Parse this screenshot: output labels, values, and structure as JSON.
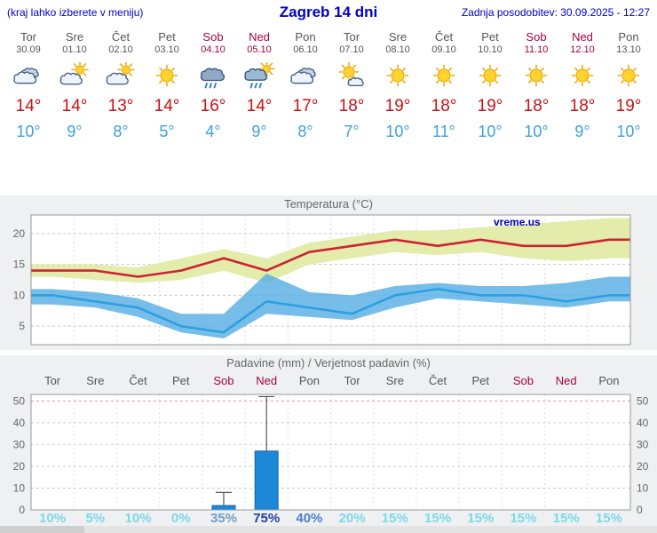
{
  "header": {
    "left_note": "(kraj lahko izberete v meniju)",
    "title": "Zagreb 14 dni",
    "updated": "Zadnja posodobitev: 30.09.2025 - 12:27"
  },
  "colors": {
    "link_blue": "#0000cc",
    "weekday": "#555555",
    "weekend": "#a50041",
    "tmax_text": "#cc1111",
    "tmin_text": "#3da0e0",
    "panel_bg": "#eff0f1",
    "watermark_blue": "#0000bb"
  },
  "days": [
    {
      "name": "Tor",
      "date": "30.09",
      "weekend": false,
      "icon": "cloudy",
      "tmax": "14°",
      "tmin": "10°"
    },
    {
      "name": "Sre",
      "date": "01.10",
      "weekend": false,
      "icon": "partly",
      "tmax": "14°",
      "tmin": "9°"
    },
    {
      "name": "Čet",
      "date": "02.10",
      "weekend": false,
      "icon": "partly",
      "tmax": "13°",
      "tmin": "8°"
    },
    {
      "name": "Pet",
      "date": "03.10",
      "weekend": false,
      "icon": "sunny",
      "tmax": "14°",
      "tmin": "5°"
    },
    {
      "name": "Sob",
      "date": "04.10",
      "weekend": true,
      "icon": "rain",
      "tmax": "16°",
      "tmin": "4°"
    },
    {
      "name": "Ned",
      "date": "05.10",
      "weekend": true,
      "icon": "rainsun",
      "tmax": "14°",
      "tmin": "9°"
    },
    {
      "name": "Pon",
      "date": "06.10",
      "weekend": false,
      "icon": "cloudy",
      "tmax": "17°",
      "tmin": "8°"
    },
    {
      "name": "Tor",
      "date": "07.10",
      "weekend": false,
      "icon": "mostlysunny",
      "tmax": "18°",
      "tmin": "7°"
    },
    {
      "name": "Sre",
      "date": "08.10",
      "weekend": false,
      "icon": "sunny",
      "tmax": "19°",
      "tmin": "10°"
    },
    {
      "name": "Čet",
      "date": "09.10",
      "weekend": false,
      "icon": "sunny",
      "tmax": "18°",
      "tmin": "11°"
    },
    {
      "name": "Pet",
      "date": "10.10",
      "weekend": false,
      "icon": "sunny",
      "tmax": "19°",
      "tmin": "10°"
    },
    {
      "name": "Sob",
      "date": "11.10",
      "weekend": true,
      "icon": "sunny",
      "tmax": "18°",
      "tmin": "10°"
    },
    {
      "name": "Ned",
      "date": "12.10",
      "weekend": true,
      "icon": "sunny",
      "tmax": "18°",
      "tmin": "9°"
    },
    {
      "name": "Pon",
      "date": "13.10",
      "weekend": false,
      "icon": "sunny",
      "tmax": "19°",
      "tmin": "10°"
    }
  ],
  "chart_data": [
    {
      "type": "area",
      "title": "Temperatura (°C)",
      "watermark": "vreme.us",
      "ylim": [
        2,
        23
      ],
      "yticks": [
        5,
        10,
        15,
        20
      ],
      "grid": true,
      "series": [
        {
          "name": "tmax-band",
          "kind": "band",
          "color": "#e3ecab",
          "upper": [
            15,
            15,
            14.5,
            16,
            17.5,
            16,
            18.5,
            19.5,
            20.5,
            20.5,
            21,
            21.5,
            22,
            22.5
          ],
          "lower": [
            13,
            12.5,
            12,
            12.5,
            14,
            12,
            15,
            16,
            17,
            16.5,
            17,
            16,
            15.5,
            16
          ]
        },
        {
          "name": "tmin-band",
          "kind": "band",
          "color": "#54aee3",
          "opacity": 0.8,
          "upper": [
            11,
            10.5,
            9.5,
            7,
            7,
            13.5,
            10.5,
            10,
            11.5,
            12,
            11.5,
            11.5,
            12,
            13
          ],
          "lower": [
            8.5,
            8,
            6.5,
            4,
            3,
            7,
            6.5,
            6,
            8,
            9.5,
            9,
            8.5,
            8,
            9
          ]
        },
        {
          "name": "tmax",
          "kind": "line",
          "color": "#cc2233",
          "values": [
            14,
            14,
            13,
            14,
            16,
            14,
            17,
            18,
            19,
            18,
            19,
            18,
            18,
            19
          ]
        },
        {
          "name": "tmin",
          "kind": "line",
          "color": "#2d9fe0",
          "values": [
            10,
            9,
            8,
            5,
            4,
            9,
            8,
            7,
            10,
            11,
            10,
            10,
            9,
            10
          ]
        }
      ]
    },
    {
      "type": "bar",
      "title": "Padavine (mm) / Verjetnost padavin (%)",
      "categories": [
        "Tor",
        "Sre",
        "Čet",
        "Pet",
        "Sob",
        "Ned",
        "Pon",
        "Tor",
        "Sre",
        "Čet",
        "Pet",
        "Sob",
        "Ned",
        "Pon"
      ],
      "weekend": [
        false,
        false,
        false,
        false,
        true,
        true,
        false,
        false,
        false,
        false,
        false,
        true,
        true,
        false
      ],
      "values": [
        0,
        0,
        0,
        0,
        2,
        27,
        0,
        0,
        0,
        0,
        0,
        0,
        0,
        0
      ],
      "whisker_max": [
        0,
        0,
        0,
        0,
        8,
        52,
        0,
        0,
        0,
        0,
        0,
        0,
        0,
        0
      ],
      "ylim": [
        0,
        53
      ],
      "yticks": [
        0,
        10,
        20,
        30,
        40,
        50
      ],
      "bar_color": "#1e88d8",
      "probabilities": [
        {
          "label": "10%",
          "color": "#7bd8ec",
          "bold": true
        },
        {
          "label": "5%",
          "color": "#7bd8ec",
          "bold": true
        },
        {
          "label": "10%",
          "color": "#7bd8ec",
          "bold": true
        },
        {
          "label": "0%",
          "color": "#7bd8ec",
          "bold": true
        },
        {
          "label": "35%",
          "color": "#6e9fc8",
          "bold": true
        },
        {
          "label": "75%",
          "color": "#1f3da8",
          "bold": true
        },
        {
          "label": "40%",
          "color": "#4a7fd0",
          "bold": true
        },
        {
          "label": "20%",
          "color": "#7bd8ec",
          "bold": true
        },
        {
          "label": "15%",
          "color": "#7bd8ec",
          "bold": true
        },
        {
          "label": "15%",
          "color": "#7bd8ec",
          "bold": true
        },
        {
          "label": "15%",
          "color": "#7bd8ec",
          "bold": true
        },
        {
          "label": "15%",
          "color": "#7bd8ec",
          "bold": true
        },
        {
          "label": "15%",
          "color": "#7bd8ec",
          "bold": true
        },
        {
          "label": "15%",
          "color": "#7bd8ec",
          "bold": true
        }
      ]
    }
  ]
}
